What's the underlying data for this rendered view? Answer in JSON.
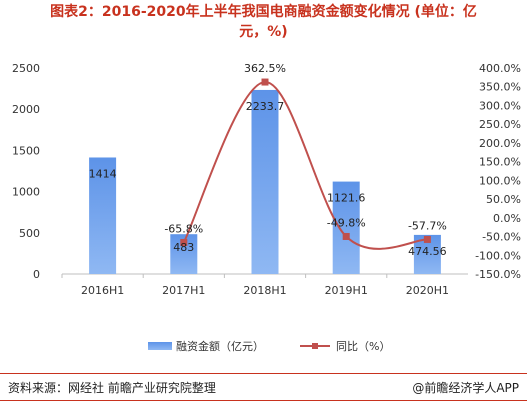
{
  "title_line1": "图表2：2016-2020年上半年我国电商融资金额变化情况 (单位：亿",
  "title_line2": "元，%)",
  "chart_data": {
    "type": "bar",
    "categories": [
      "2016H1",
      "2017H1",
      "2018H1",
      "2019H1",
      "2020H1"
    ],
    "series": [
      {
        "name": "融资金额（亿元）",
        "type": "bar",
        "axis": "left",
        "values": [
          1414,
          483,
          2233.7,
          1121.6,
          474.56
        ],
        "labels": [
          "1414",
          "483",
          "2233.7",
          "1121.6",
          "474.56"
        ],
        "color": "#7ba9ee"
      },
      {
        "name": "同比（%）",
        "type": "line",
        "axis": "right",
        "values": [
          null,
          -65.8,
          362.5,
          -49.8,
          -57.7
        ],
        "labels": [
          "",
          "-65.8%",
          "362.5%",
          "-49.8%",
          "-57.7%"
        ],
        "color": "#c0504d",
        "smooth": true
      }
    ],
    "ylim_left": [
      0,
      2500
    ],
    "yticks_left": [
      "0",
      "500",
      "1000",
      "1500",
      "2000",
      "2500"
    ],
    "ylim_right": [
      -150,
      400
    ],
    "yticks_right": [
      "-150.0%",
      "-100.0%",
      "-50.0%",
      "0.0%",
      "50.0%",
      "100.0%",
      "150.0%",
      "200.0%",
      "250.0%",
      "300.0%",
      "350.0%",
      "400.0%"
    ],
    "grid": false,
    "legend_position": "bottom"
  },
  "legend": {
    "bar_label": "融资金额（亿元）",
    "line_label": "同比（%）"
  },
  "footer": {
    "source": "资料来源：网经社 前瞻产业研究院整理",
    "brand": "@前瞻经济学人APP"
  },
  "colors": {
    "title": "#c8321e",
    "bar": "#7ba9ee",
    "line": "#c0504d",
    "rule": "#c8321e"
  }
}
